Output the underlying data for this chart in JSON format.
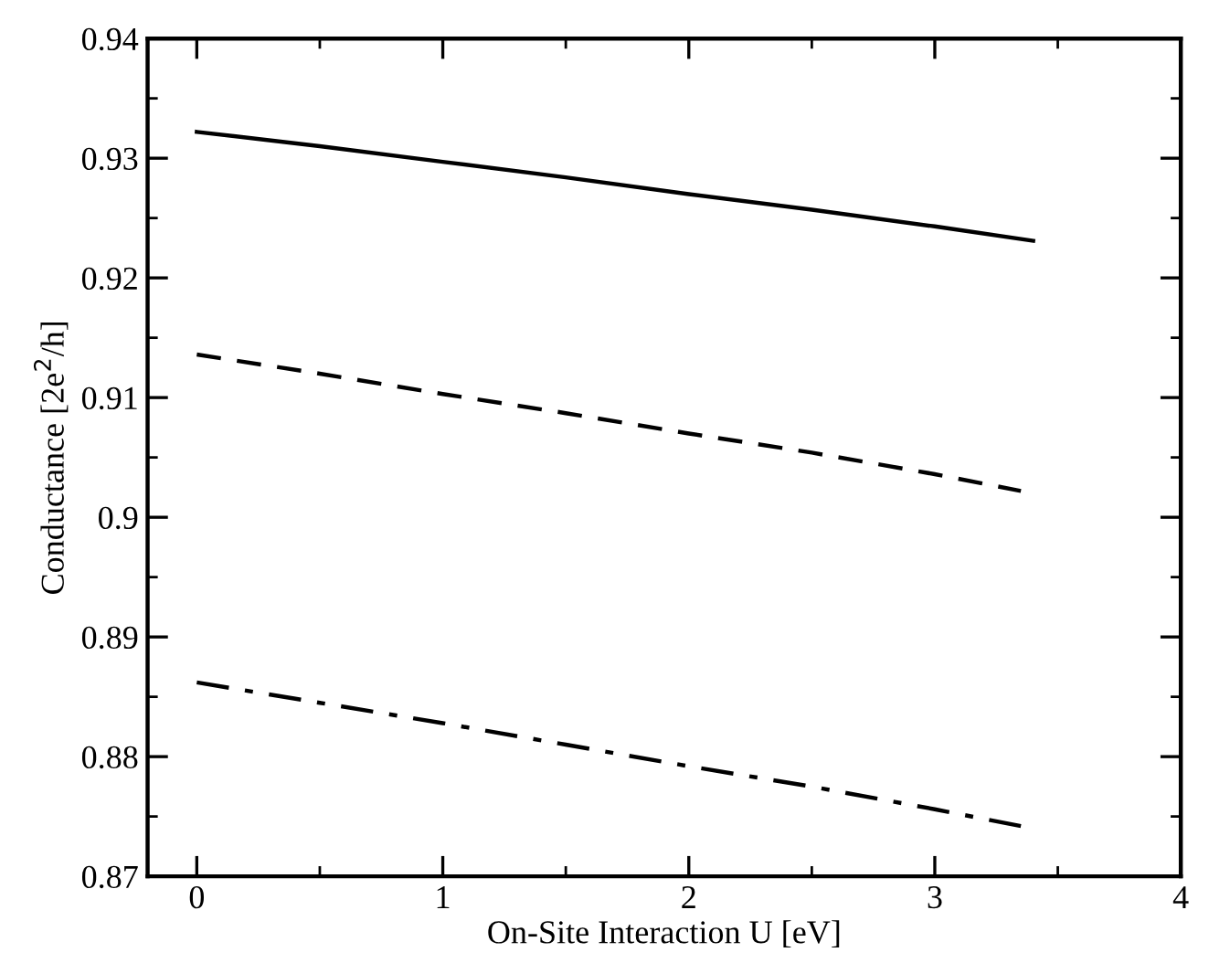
{
  "chart_data": {
    "type": "line",
    "xlabel": "On-Site Interaction U [eV]",
    "ylabel": "Conductance [2e$^{2}$/h]",
    "xlim": [
      -0.2,
      4
    ],
    "xticks": [
      0,
      1,
      2,
      3,
      4
    ],
    "ylim": [
      0.87,
      0.94
    ],
    "yticks": [
      0.87,
      0.88,
      0.89,
      0.9,
      0.91,
      0.92,
      0.93,
      0.94
    ],
    "grid": false,
    "legend": false,
    "marker": "none",
    "series": [
      {
        "color": "#000000",
        "line_style": "solid",
        "x": [
          0,
          0.5,
          1,
          1.5,
          2,
          2.5,
          3,
          3.4
        ],
        "values": [
          0.9322,
          0.931,
          0.9297,
          0.9284,
          0.927,
          0.9257,
          0.9243,
          0.9231
        ]
      },
      {
        "color": "#000000",
        "line_style": "dashed",
        "x": [
          0,
          0.5,
          1,
          1.5,
          2,
          2.5,
          3,
          3.35
        ],
        "values": [
          0.9136,
          0.912,
          0.9103,
          0.9087,
          0.907,
          0.9054,
          0.9036,
          0.9022
        ]
      },
      {
        "color": "#000000",
        "line_style": "dashdot",
        "x": [
          0,
          0.5,
          1,
          1.5,
          2,
          2.5,
          3,
          3.35
        ],
        "values": [
          0.8862,
          0.8845,
          0.8828,
          0.881,
          0.8792,
          0.8775,
          0.8756,
          0.8742
        ]
      }
    ]
  }
}
